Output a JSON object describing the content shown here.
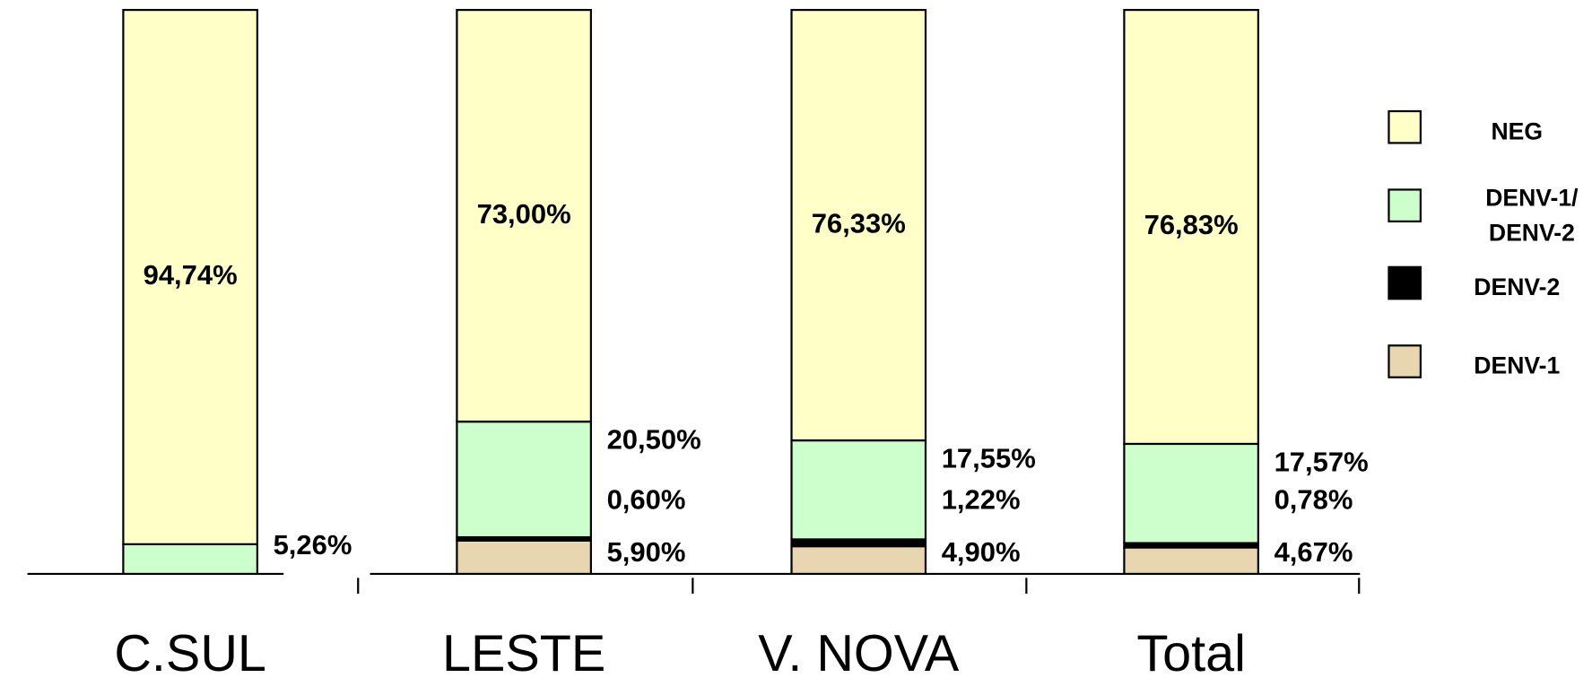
{
  "chart_data": {
    "type": "stacked_bar",
    "categories": [
      "C.SUL",
      "LESTE",
      "V. NOVA",
      "Total"
    ],
    "series": [
      {
        "name": "DENV-1",
        "color": "#e8d6b0",
        "values": [
          0,
          5.9,
          4.9,
          4.67
        ],
        "value_labels": [
          null,
          "5,90%",
          "4,90%",
          "4,67%"
        ]
      },
      {
        "name": "DENV-2",
        "color": "#000000",
        "values": [
          0,
          0.6,
          1.22,
          0.78
        ],
        "value_labels": [
          null,
          "0,60%",
          "1,22%",
          "0,78%"
        ]
      },
      {
        "name": "DENV-1/DENV-2",
        "color": "#ccffcc",
        "values": [
          5.26,
          20.5,
          17.55,
          17.57
        ],
        "value_labels": [
          "5,26%",
          "20,50%",
          "17,55%",
          "17,57%"
        ]
      },
      {
        "name": "NEG",
        "color": "#ffffc8",
        "values": [
          94.74,
          73.0,
          76.33,
          76.83
        ],
        "value_labels": [
          "94,74%",
          "73,00%",
          "76,33%",
          "76,83%"
        ]
      }
    ],
    "legend": "right"
  }
}
